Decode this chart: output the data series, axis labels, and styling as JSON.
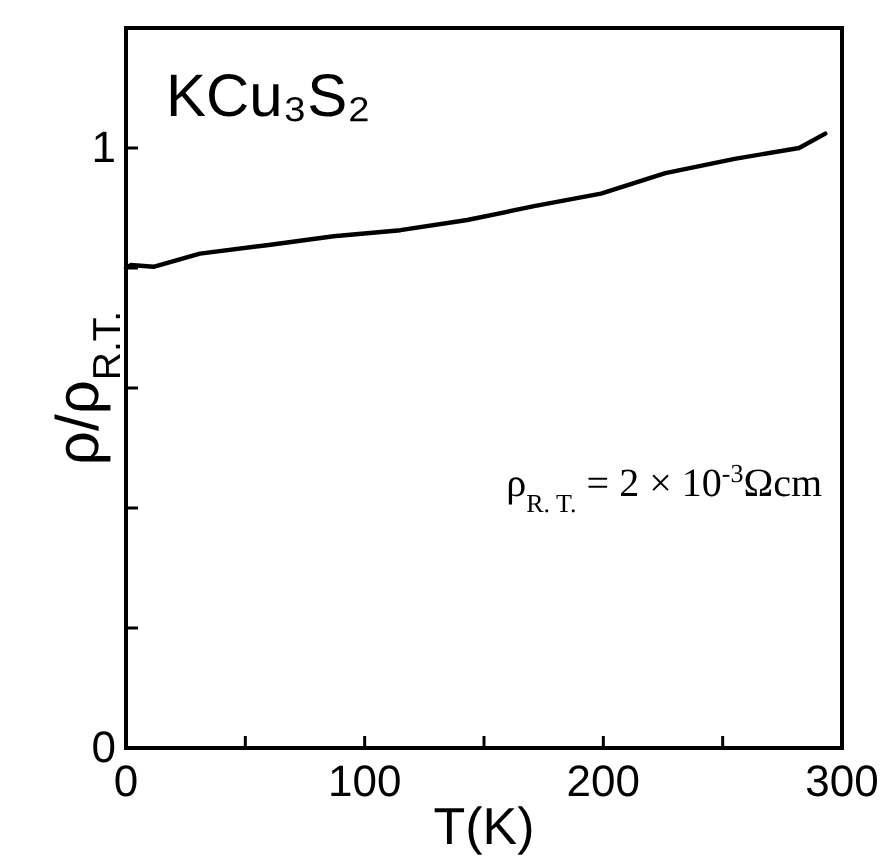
{
  "chart_data": {
    "type": "line",
    "title": "KCu₃S₂",
    "xlabel": "T(K)",
    "ylabel": "ρ/ρ$_{R.T.}$",
    "annotations": [
      "ρ$_{R. T.}$ = 2 × 10$^{-3}$Ωcm"
    ],
    "series": [
      {
        "color": "#000000",
        "x": [
          0,
          2,
          11.5,
          31,
          59,
          87,
          115,
          143,
          171,
          199,
          226,
          255,
          282,
          293
        ],
        "values": [
          0.8,
          0.805,
          0.802,
          0.824,
          0.838,
          0.853,
          0.863,
          0.88,
          0.903,
          0.924,
          0.958,
          0.982,
          1.0,
          1.024
        ]
      }
    ],
    "xlim": [
      0,
      300
    ],
    "ylim": [
      0,
      1.2
    ],
    "xticks": [
      0,
      {
        "value": 50,
        "label": null
      },
      100,
      {
        "value": 150,
        "label": null
      },
      200,
      {
        "value": 250,
        "label": null
      },
      300
    ],
    "yticks": [
      0,
      {
        "value": 0.2,
        "label": null
      },
      {
        "value": 0.4,
        "label": null
      },
      {
        "value": 0.6,
        "label": null
      },
      {
        "value": 0.8,
        "label": null
      },
      1
    ],
    "grid": false,
    "marker": "none",
    "line_style": "solid"
  }
}
